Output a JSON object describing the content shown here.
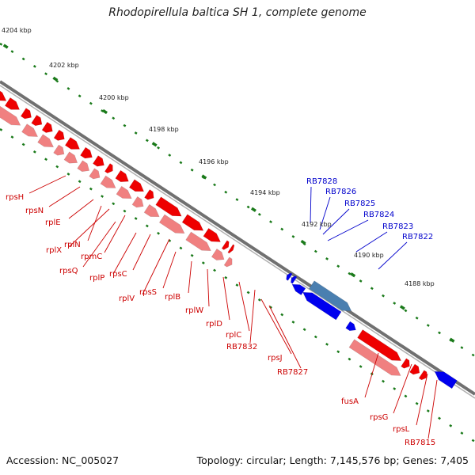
{
  "title": "Rhodopirellula baltica SH 1, complete genome",
  "footer": {
    "accession": "Accession: NC_005027",
    "info": "Topology: circular; Length: 7,145,576 bp; Genes: 7,405"
  },
  "scale_labels": [
    "4204 kbp",
    "4202 kbp",
    "4200 kbp",
    "4198 kbp",
    "4196 kbp",
    "4194 kbp",
    "4192 kbp",
    "4190 kbp",
    "4188 kbp"
  ],
  "gene_labels": [
    {
      "text": "rpsH",
      "color": "#cc0000"
    },
    {
      "text": "rpsN",
      "color": "#cc0000"
    },
    {
      "text": "rplE",
      "color": "#cc0000"
    },
    {
      "text": "rplX",
      "color": "#cc0000"
    },
    {
      "text": "rplN",
      "color": "#cc0000"
    },
    {
      "text": "rpmC",
      "color": "#cc0000"
    },
    {
      "text": "rpsQ",
      "color": "#cc0000"
    },
    {
      "text": "rplP",
      "color": "#cc0000"
    },
    {
      "text": "rpsC",
      "color": "#cc0000"
    },
    {
      "text": "rplV",
      "color": "#cc0000"
    },
    {
      "text": "rpsS",
      "color": "#cc0000"
    },
    {
      "text": "rplB",
      "color": "#cc0000"
    },
    {
      "text": "rplW",
      "color": "#cc0000"
    },
    {
      "text": "rplD",
      "color": "#cc0000"
    },
    {
      "text": "rplC",
      "color": "#cc0000"
    },
    {
      "text": "RB7832",
      "color": "#cc0000"
    },
    {
      "text": "rpsJ",
      "color": "#cc0000"
    },
    {
      "text": "RB7827",
      "color": "#cc0000"
    },
    {
      "text": "RB7828",
      "color": "#0000cc"
    },
    {
      "text": "RB7826",
      "color": "#0000cc"
    },
    {
      "text": "RB7825",
      "color": "#0000cc"
    },
    {
      "text": "RB7824",
      "color": "#0000cc"
    },
    {
      "text": "RB7823",
      "color": "#0000cc"
    },
    {
      "text": "RB7822",
      "color": "#0000cc"
    },
    {
      "text": "fusA",
      "color": "#cc0000"
    },
    {
      "text": "rpsG",
      "color": "#cc0000"
    },
    {
      "text": "rpsL",
      "color": "#cc0000"
    },
    {
      "text": "RB7815",
      "color": "#cc0000"
    }
  ],
  "colors": {
    "forward_dark": "#ee0000",
    "forward_light": "#f08080",
    "reverse": "#0000ee",
    "reverse_steel": "#4a7fb0",
    "backbone": "#707070",
    "ticks": "#1a7a1a"
  }
}
